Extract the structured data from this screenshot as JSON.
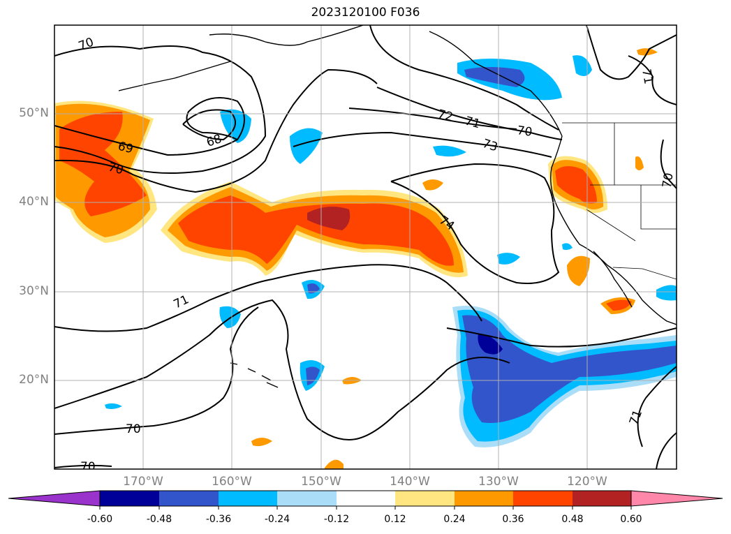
{
  "title": "2023120100 F036",
  "map": {
    "projection": "lat-lon",
    "lon_range": [
      -180,
      -110
    ],
    "lat_range": [
      10,
      60
    ],
    "lat_labels": [
      "50°N",
      "40°N",
      "30°N",
      "20°N"
    ],
    "lon_labels": [
      "170°W",
      "160°W",
      "150°W",
      "140°W",
      "130°W",
      "120°W"
    ],
    "contour_labels": [
      "70",
      "69",
      "68",
      "70",
      "72",
      "71",
      "70",
      "73",
      "74",
      "71",
      "70",
      "70",
      "71",
      "71",
      "70"
    ]
  },
  "colorbar": {
    "ticks": [
      "-0.60",
      "-0.48",
      "-0.36",
      "-0.24",
      "-0.12",
      "0.12",
      "0.24",
      "0.36",
      "0.48",
      "0.60"
    ],
    "colors": [
      "#9933cc",
      "#000099",
      "#3355cc",
      "#00bbff",
      "#aaddf7",
      "#ffffff",
      "#ffe680",
      "#ff9900",
      "#ff4400",
      "#b22222",
      "#ff88aa"
    ],
    "extend": "both"
  }
}
